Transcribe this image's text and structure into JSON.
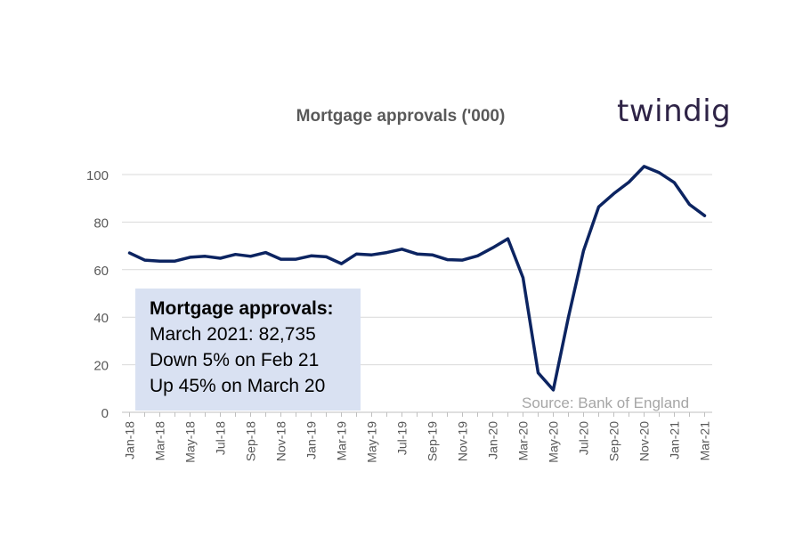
{
  "logo": {
    "text": "twindig"
  },
  "callout": {
    "title": "Mortgage approvals:",
    "lines": [
      "March 2021: 82,735",
      "Down 5% on Feb 21",
      "Up 45% on March 20"
    ]
  },
  "source": "Source: Bank of England",
  "colors": {
    "line": "#0c2461",
    "grid": "#d9d9d9",
    "callout_bg": "#d9e1f2",
    "text": "#595959"
  },
  "chart_data": {
    "type": "line",
    "title": "Mortgage approvals ('000)",
    "xlabel": "",
    "ylabel": "",
    "ylim": [
      0,
      100
    ],
    "yticks": [
      0,
      20,
      40,
      60,
      80,
      100
    ],
    "grid": true,
    "x": [
      "Jan-18",
      "Feb-18",
      "Mar-18",
      "Apr-18",
      "May-18",
      "Jun-18",
      "Jul-18",
      "Aug-18",
      "Sep-18",
      "Oct-18",
      "Nov-18",
      "Dec-18",
      "Jan-19",
      "Feb-19",
      "Mar-19",
      "Apr-19",
      "May-19",
      "Jun-19",
      "Jul-19",
      "Aug-19",
      "Sep-19",
      "Oct-19",
      "Nov-19",
      "Dec-19",
      "Jan-20",
      "Feb-20",
      "Mar-20",
      "Apr-20",
      "May-20",
      "Jun-20",
      "Jul-20",
      "Aug-20",
      "Sep-20",
      "Oct-20",
      "Nov-20",
      "Dec-20",
      "Jan-21",
      "Feb-21",
      "Mar-21"
    ],
    "xtick_labels": [
      "Jan-18",
      "Mar-18",
      "May-18",
      "Jul-18",
      "Sep-18",
      "Nov-18",
      "Jan-19",
      "Mar-19",
      "May-19",
      "Jul-19",
      "Sep-19",
      "Nov-19",
      "Jan-20",
      "Mar-20",
      "May-20",
      "Jul-20",
      "Sep-20",
      "Nov-20",
      "Jan-21",
      "Mar-21"
    ],
    "series": [
      {
        "values": [
          67,
          64,
          63.6,
          63.6,
          65.2,
          65.6,
          64.8,
          66.4,
          65.6,
          67.2,
          64.4,
          64.4,
          65.8,
          65.4,
          62.5,
          66.6,
          66.2,
          67.2,
          68.6,
          66.6,
          66.2,
          64.2,
          64.0,
          65.8,
          69.2,
          73.0,
          56.6,
          16.6,
          9.4,
          40.0,
          68.0,
          86.4,
          92.0,
          96.8,
          103.4,
          100.8,
          96.6,
          87.4,
          82.7
        ]
      }
    ]
  }
}
